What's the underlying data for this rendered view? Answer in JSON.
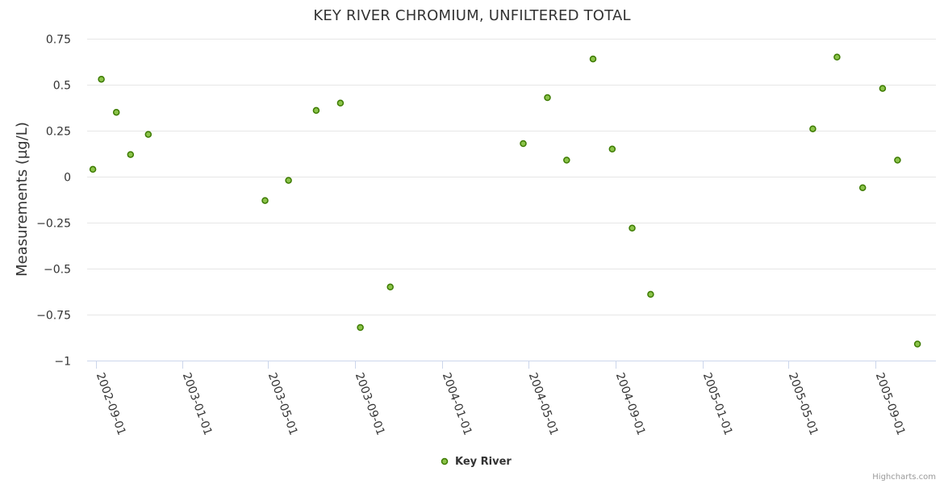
{
  "chart_data": {
    "type": "scatter",
    "title": "KEY RIVER CHROMIUM, UNFILTERED TOTAL",
    "ylabel": "Measurements (µg/L)",
    "ylim": [
      -1,
      0.75
    ],
    "yticks": [
      0.75,
      0.5,
      0.25,
      0,
      -0.25,
      -0.5,
      -0.75,
      -1
    ],
    "ytick_labels": [
      "0.75",
      "0.5",
      "0.25",
      "0",
      "−0.25",
      "−0.5",
      "−0.75",
      "−1"
    ],
    "xlim": [
      "2002-08-20",
      "2005-11-25"
    ],
    "xticks": [
      "2002-09-01",
      "2003-01-01",
      "2003-05-01",
      "2003-09-01",
      "2004-01-01",
      "2004-05-01",
      "2004-09-01",
      "2005-01-01",
      "2005-05-01",
      "2005-09-01"
    ],
    "legend": "bottom-center",
    "series": [
      {
        "name": "Key River",
        "color": "#8bc34a",
        "stroke": "#3c7a00",
        "points": [
          {
            "x": "2002-08-28",
            "y": 0.04
          },
          {
            "x": "2002-09-09",
            "y": 0.53
          },
          {
            "x": "2002-09-30",
            "y": 0.35
          },
          {
            "x": "2002-10-20",
            "y": 0.12
          },
          {
            "x": "2002-11-14",
            "y": 0.23
          },
          {
            "x": "2003-04-27",
            "y": -0.13
          },
          {
            "x": "2003-05-30",
            "y": -0.02
          },
          {
            "x": "2003-07-08",
            "y": 0.36
          },
          {
            "x": "2003-08-11",
            "y": 0.4
          },
          {
            "x": "2003-09-08",
            "y": -0.82
          },
          {
            "x": "2003-10-20",
            "y": -0.6
          },
          {
            "x": "2004-04-24",
            "y": 0.18
          },
          {
            "x": "2004-05-28",
            "y": 0.43
          },
          {
            "x": "2004-06-24",
            "y": 0.09
          },
          {
            "x": "2004-07-31",
            "y": 0.64
          },
          {
            "x": "2004-08-27",
            "y": 0.15
          },
          {
            "x": "2004-09-24",
            "y": -0.28
          },
          {
            "x": "2004-10-20",
            "y": -0.64
          },
          {
            "x": "2005-06-05",
            "y": 0.26
          },
          {
            "x": "2005-07-09",
            "y": 0.65
          },
          {
            "x": "2005-08-14",
            "y": -0.06
          },
          {
            "x": "2005-09-11",
            "y": 0.48
          },
          {
            "x": "2005-10-02",
            "y": 0.09
          },
          {
            "x": "2005-10-30",
            "y": -0.91
          }
        ]
      }
    ],
    "credits": "Highcharts.com"
  }
}
